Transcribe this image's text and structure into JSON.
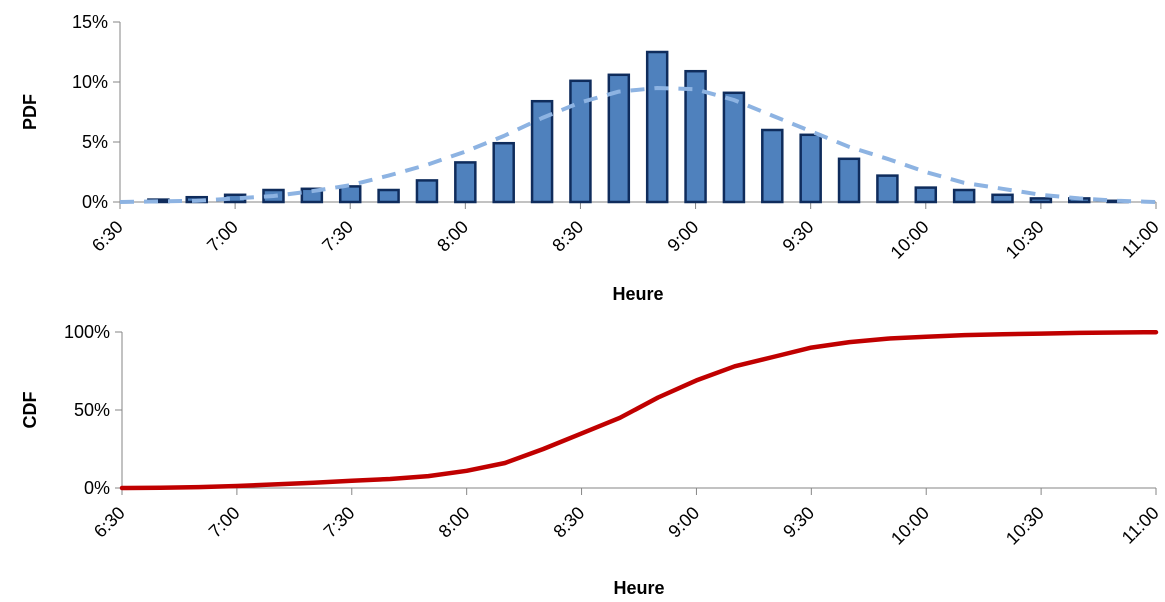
{
  "chart_data": [
    {
      "id": "pdf",
      "type": "bar",
      "ylabel": "PDF",
      "xlabel": "Heure",
      "ylim": [
        0,
        15
      ],
      "y_ticks": [
        "0%",
        "5%",
        "10%",
        "15%"
      ],
      "y_tick_values": [
        0,
        5,
        10,
        15
      ],
      "x_range": [
        "6:30",
        "11:00"
      ],
      "x_ticks": [
        "6:30",
        "7:00",
        "7:30",
        "8:00",
        "8:30",
        "9:00",
        "9:30",
        "10:00",
        "10:30",
        "11:00"
      ],
      "grid": false,
      "series": [
        {
          "type": "bar",
          "color": "#4F81BD",
          "edge_color": "#0F2C5C",
          "x": [
            "6:40",
            "6:50",
            "7:00",
            "7:10",
            "7:20",
            "7:30",
            "7:40",
            "7:50",
            "8:00",
            "8:10",
            "8:20",
            "8:30",
            "8:40",
            "8:50",
            "9:00",
            "9:10",
            "9:20",
            "9:30",
            "9:40",
            "9:50",
            "10:00",
            "10:10",
            "10:20",
            "10:30",
            "10:40",
            "10:50"
          ],
          "values": [
            0.2,
            0.4,
            0.6,
            1.0,
            1.1,
            1.3,
            1.0,
            1.8,
            3.3,
            4.9,
            8.4,
            10.1,
            10.6,
            12.5,
            10.9,
            9.1,
            6.0,
            5.6,
            3.6,
            2.2,
            1.2,
            1.0,
            0.6,
            0.3,
            0.3,
            0.1
          ]
        },
        {
          "type": "line",
          "style": "dashed",
          "color": "#8DB3E2",
          "x": [
            "6:30",
            "6:50",
            "7:00",
            "7:10",
            "7:20",
            "7:30",
            "7:40",
            "7:50",
            "8:00",
            "8:10",
            "8:20",
            "8:30",
            "8:40",
            "8:50",
            "9:00",
            "9:10",
            "9:20",
            "9:30",
            "9:40",
            "9:50",
            "10:00",
            "10:10",
            "10:20",
            "10:30",
            "10:40",
            "10:50",
            "11:00"
          ],
          "values": [
            0.0,
            0.1,
            0.3,
            0.5,
            0.9,
            1.4,
            2.2,
            3.1,
            4.2,
            5.5,
            7.0,
            8.3,
            9.2,
            9.5,
            9.4,
            8.5,
            7.2,
            5.9,
            4.6,
            3.6,
            2.5,
            1.6,
            1.1,
            0.6,
            0.3,
            0.1,
            0.0
          ]
        }
      ]
    },
    {
      "id": "cdf",
      "type": "line",
      "ylabel": "CDF",
      "xlabel": "Heure",
      "ylim": [
        0,
        100
      ],
      "y_ticks": [
        "0%",
        "50%",
        "100%"
      ],
      "y_tick_values": [
        0,
        50,
        100
      ],
      "x_range": [
        "6:30",
        "11:00"
      ],
      "x_ticks": [
        "6:30",
        "7:00",
        "7:30",
        "8:00",
        "8:30",
        "9:00",
        "9:30",
        "10:00",
        "10:30",
        "11:00"
      ],
      "grid": false,
      "series": [
        {
          "type": "line",
          "style": "solid",
          "color": "#C00000",
          "x": [
            "6:30",
            "6:40",
            "6:50",
            "7:00",
            "7:10",
            "7:20",
            "7:30",
            "7:40",
            "7:50",
            "8:00",
            "8:10",
            "8:20",
            "8:30",
            "8:40",
            "8:50",
            "9:00",
            "9:10",
            "9:20",
            "9:30",
            "9:40",
            "9:50",
            "10:00",
            "10:10",
            "10:20",
            "10:30",
            "10:40",
            "10:50",
            "11:00"
          ],
          "values": [
            0.0,
            0.2,
            0.6,
            1.3,
            2.3,
            3.4,
            4.7,
            5.8,
            7.6,
            11.0,
            16.0,
            25.0,
            35.0,
            45.0,
            58.0,
            69.0,
            78.0,
            84.0,
            90.0,
            93.5,
            95.8,
            97.0,
            98.0,
            98.6,
            99.0,
            99.4,
            99.7,
            99.9
          ]
        }
      ]
    }
  ]
}
